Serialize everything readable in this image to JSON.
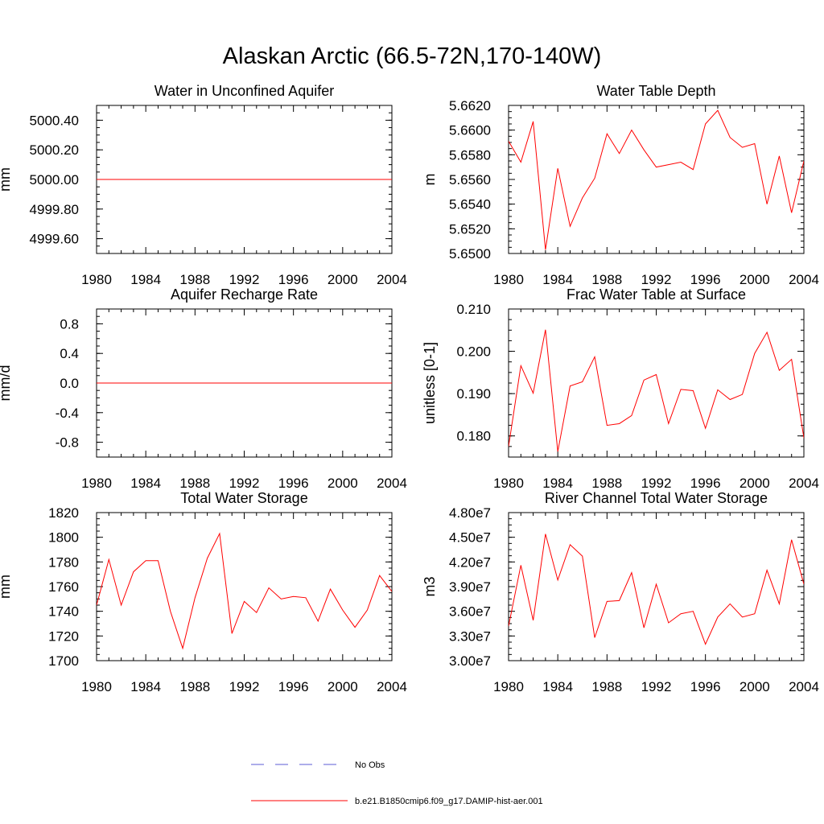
{
  "title": "Alaskan Arctic (66.5-72N,170-140W)",
  "colors": {
    "model": "#ff0000",
    "obs": "#5b5bd6",
    "axis": "#000000"
  },
  "legend": {
    "obs_label": "No Obs",
    "model_label": "b.e21.B1850cmip6.f09_g17.DAMIP-hist-aer.001"
  },
  "chart_data": [
    {
      "type": "line",
      "title": "Water in Unconfined Aquifer",
      "ylabel": "mm",
      "xlim": [
        1980,
        2004
      ],
      "ylim": [
        4999.5,
        5000.5
      ],
      "xticks": [
        1980,
        1984,
        1988,
        1992,
        1996,
        2000,
        2004
      ],
      "yticks": [
        4999.6,
        4999.8,
        5000.0,
        5000.2,
        5000.4
      ],
      "ytick_labels": [
        "4999.60",
        "4999.80",
        "5000.00",
        "5000.20",
        "5000.40"
      ],
      "x": [
        1980,
        1981,
        1982,
        1983,
        1984,
        1985,
        1986,
        1987,
        1988,
        1989,
        1990,
        1991,
        1992,
        1993,
        1994,
        1995,
        1996,
        1997,
        1998,
        1999,
        2000,
        2001,
        2002,
        2003,
        2004
      ],
      "series": [
        {
          "values": [
            5000,
            5000,
            5000,
            5000,
            5000,
            5000,
            5000,
            5000,
            5000,
            5000,
            5000,
            5000,
            5000,
            5000,
            5000,
            5000,
            5000,
            5000,
            5000,
            5000,
            5000,
            5000,
            5000,
            5000,
            5000
          ]
        }
      ]
    },
    {
      "type": "line",
      "title": "Water Table Depth",
      "ylabel": "m",
      "xlim": [
        1980,
        2004
      ],
      "ylim": [
        5.65,
        5.662
      ],
      "xticks": [
        1980,
        1984,
        1988,
        1992,
        1996,
        2000,
        2004
      ],
      "yticks": [
        5.65,
        5.652,
        5.654,
        5.656,
        5.658,
        5.66,
        5.662
      ],
      "ytick_labels": [
        "5.6500",
        "5.6520",
        "5.6540",
        "5.6560",
        "5.6580",
        "5.6600",
        "5.6620"
      ],
      "x": [
        1980,
        1981,
        1982,
        1983,
        1984,
        1985,
        1986,
        1987,
        1988,
        1989,
        1990,
        1991,
        1992,
        1993,
        1994,
        1995,
        1996,
        1997,
        1998,
        1999,
        2000,
        2001,
        2002,
        2003,
        2004
      ],
      "series": [
        {
          "values": [
            5.6591,
            5.6574,
            5.6607,
            5.6503,
            5.6569,
            5.6522,
            5.6545,
            5.6561,
            5.6597,
            5.6581,
            5.66,
            5.6584,
            5.657,
            5.6572,
            5.6574,
            5.6568,
            5.6605,
            5.6616,
            5.6594,
            5.6586,
            5.6589,
            5.654,
            5.6579,
            5.6533,
            5.6575
          ]
        }
      ]
    },
    {
      "type": "line",
      "title": "Aquifer Recharge Rate",
      "ylabel": "mm/d",
      "xlim": [
        1980,
        2004
      ],
      "ylim": [
        -1.0,
        1.0
      ],
      "xticks": [
        1980,
        1984,
        1988,
        1992,
        1996,
        2000,
        2004
      ],
      "yticks": [
        -0.8,
        -0.4,
        0.0,
        0.4,
        0.8
      ],
      "ytick_labels": [
        "-0.8",
        "-0.4",
        "0.0",
        "0.4",
        "0.8"
      ],
      "x": [
        1980,
        1981,
        1982,
        1983,
        1984,
        1985,
        1986,
        1987,
        1988,
        1989,
        1990,
        1991,
        1992,
        1993,
        1994,
        1995,
        1996,
        1997,
        1998,
        1999,
        2000,
        2001,
        2002,
        2003,
        2004
      ],
      "series": [
        {
          "values": [
            0,
            0,
            0,
            0,
            0,
            0,
            0,
            0,
            0,
            0,
            0,
            0,
            0,
            0,
            0,
            0,
            0,
            0,
            0,
            0,
            0,
            0,
            0,
            0,
            0
          ]
        }
      ]
    },
    {
      "type": "line",
      "title": "Frac Water Table at Surface",
      "ylabel": "unitless [0-1]",
      "xlim": [
        1980,
        2004
      ],
      "ylim": [
        0.175,
        0.21
      ],
      "xticks": [
        1980,
        1984,
        1988,
        1992,
        1996,
        2000,
        2004
      ],
      "yticks": [
        0.18,
        0.19,
        0.2,
        0.21
      ],
      "ytick_labels": [
        "0.180",
        "0.190",
        "0.200",
        "0.210"
      ],
      "x": [
        1980,
        1981,
        1982,
        1983,
        1984,
        1985,
        1986,
        1987,
        1988,
        1989,
        1990,
        1991,
        1992,
        1993,
        1994,
        1995,
        1996,
        1997,
        1998,
        1999,
        2000,
        2001,
        2002,
        2003,
        2004
      ],
      "series": [
        {
          "values": [
            0.1775,
            0.1966,
            0.1901,
            0.2051,
            0.1763,
            0.1918,
            0.1928,
            0.1987,
            0.1825,
            0.1829,
            0.1848,
            0.1932,
            0.1945,
            0.1829,
            0.191,
            0.1907,
            0.1818,
            0.1909,
            0.1886,
            0.1898,
            0.1995,
            0.2045,
            0.1955,
            0.1981,
            0.1795
          ]
        }
      ]
    },
    {
      "type": "line",
      "title": "Total Water Storage",
      "ylabel": "mm",
      "xlim": [
        1980,
        2004
      ],
      "ylim": [
        1700,
        1820
      ],
      "xticks": [
        1980,
        1984,
        1988,
        1992,
        1996,
        2000,
        2004
      ],
      "yticks": [
        1700,
        1720,
        1740,
        1760,
        1780,
        1800,
        1820
      ],
      "ytick_labels": [
        "1700",
        "1720",
        "1740",
        "1760",
        "1780",
        "1800",
        "1820"
      ],
      "x": [
        1980,
        1981,
        1982,
        1983,
        1984,
        1985,
        1986,
        1987,
        1988,
        1989,
        1990,
        1991,
        1992,
        1993,
        1994,
        1995,
        1996,
        1997,
        1998,
        1999,
        2000,
        2001,
        2002,
        2003,
        2004
      ],
      "series": [
        {
          "values": [
            1745,
            1782,
            1745,
            1772,
            1781,
            1781,
            1740,
            1710,
            1751,
            1783,
            1803,
            1722,
            1748,
            1739,
            1759,
            1750,
            1752,
            1751,
            1732,
            1758,
            1741,
            1727,
            1741,
            1769,
            1756
          ]
        }
      ]
    },
    {
      "type": "line",
      "title": "River Channel Total Water Storage",
      "ylabel": "m3",
      "xlim": [
        1980,
        2004
      ],
      "ylim": [
        30000000,
        48000000
      ],
      "xticks": [
        1980,
        1984,
        1988,
        1992,
        1996,
        2000,
        2004
      ],
      "yticks": [
        30000000,
        33000000,
        36000000,
        39000000,
        42000000,
        45000000,
        48000000
      ],
      "ytick_labels": [
        "3.00e7",
        "3.30e7",
        "3.60e7",
        "3.90e7",
        "4.20e7",
        "4.50e7",
        "4.80e7"
      ],
      "x": [
        1980,
        1981,
        1982,
        1983,
        1984,
        1985,
        1986,
        1987,
        1988,
        1989,
        1990,
        1991,
        1992,
        1993,
        1994,
        1995,
        1996,
        1997,
        1998,
        1999,
        2000,
        2001,
        2002,
        2003,
        2004
      ],
      "series": [
        {
          "values": [
            34200000,
            41600000,
            34900000,
            45400000,
            39800000,
            44100000,
            42700000,
            32800000,
            37200000,
            37300000,
            40700000,
            34000000,
            39300000,
            34600000,
            35700000,
            36000000,
            32000000,
            35300000,
            36900000,
            35300000,
            35700000,
            41000000,
            36900000,
            44700000,
            39300000
          ]
        }
      ]
    }
  ]
}
